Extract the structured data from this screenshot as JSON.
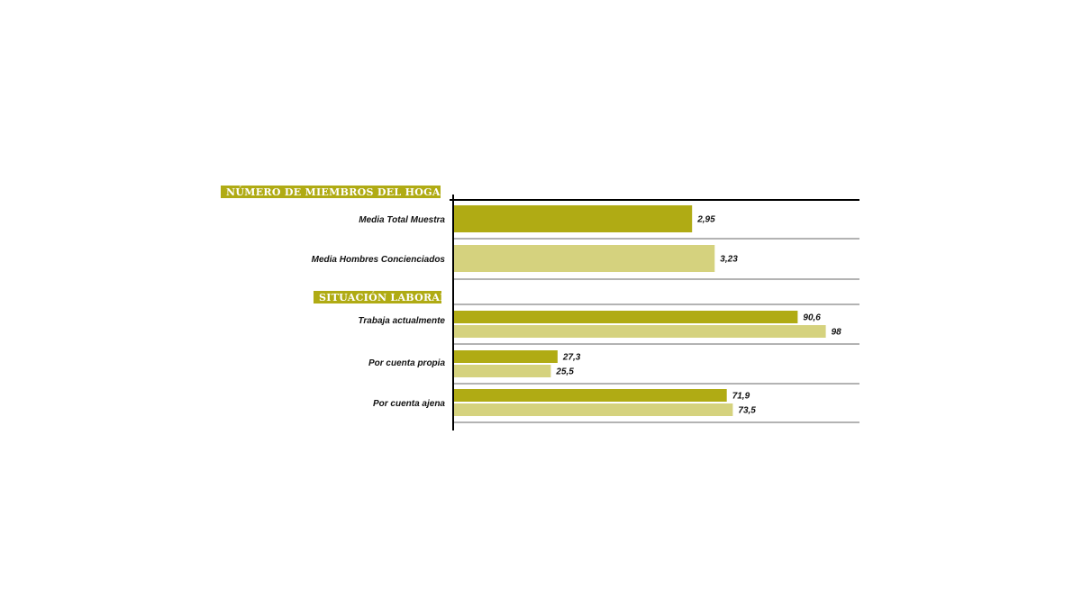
{
  "chart_data": {
    "type": "bar",
    "orientation": "horizontal",
    "colors": {
      "series_dark": "#b0ab14",
      "series_light": "#d5d27e",
      "header_bg": "#b0ab14"
    },
    "sections": [
      {
        "title": "NÚMERO DE MIEMBROS DEL HOGAR",
        "xlim": [
          0,
          4.7
        ],
        "categories": [
          {
            "label": "Media Total Muestra",
            "values": [
              2.95
            ],
            "value_labels": [
              "2,95"
            ],
            "series": [
              "dark"
            ]
          },
          {
            "label": "Media Hombres Concienciados",
            "values": [
              3.23
            ],
            "value_labels": [
              "3,23"
            ],
            "series": [
              "light"
            ]
          }
        ]
      },
      {
        "title": "SITUACIÓN LABORAL",
        "xlim": [
          0,
          100
        ],
        "categories": [
          {
            "label": "Trabaja actualmente",
            "values": [
              90.6,
              98
            ],
            "value_labels": [
              "90,6",
              "98"
            ],
            "series": [
              "dark",
              "light"
            ]
          },
          {
            "label": "Por cuenta propia",
            "values": [
              27.3,
              25.5
            ],
            "value_labels": [
              "27,3",
              "25,5"
            ],
            "series": [
              "dark",
              "light"
            ]
          },
          {
            "label": "Por cuenta ajena",
            "values": [
              71.9,
              73.5
            ],
            "value_labels": [
              "71,9",
              "73,5"
            ],
            "series": [
              "dark",
              "light"
            ]
          }
        ]
      }
    ]
  }
}
